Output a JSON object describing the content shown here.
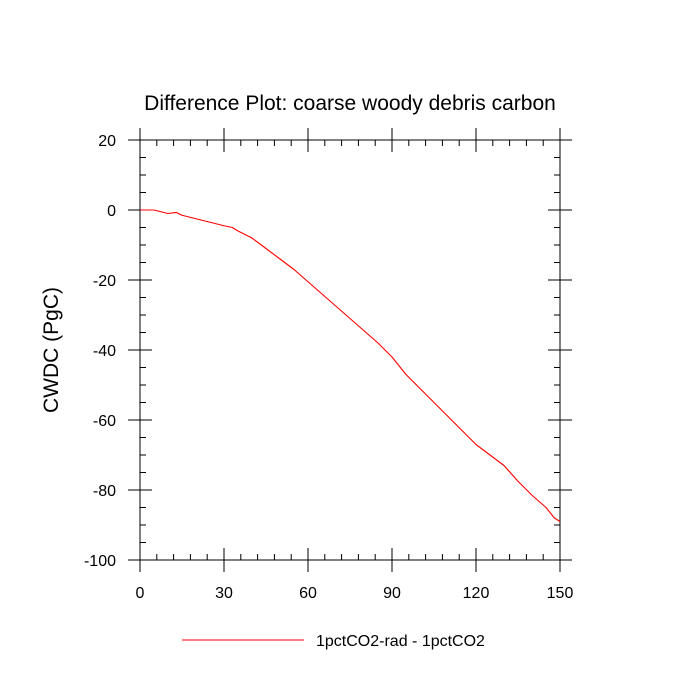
{
  "chart_data": {
    "type": "line",
    "title": "Difference Plot: coarse woody debris carbon",
    "xlabel": "",
    "ylabel": "CWDC  (PgC)",
    "xlim": [
      0,
      150
    ],
    "ylim": [
      -100,
      20
    ],
    "x_ticks": [
      0,
      30,
      60,
      90,
      120,
      150
    ],
    "y_ticks": [
      20,
      0,
      -20,
      -40,
      -60,
      -80,
      -100
    ],
    "x_tick_labels": [
      "0",
      "30",
      "60",
      "90",
      "120",
      "150"
    ],
    "y_tick_labels": [
      "20",
      "0",
      "-20",
      "-40",
      "-60",
      "-80",
      "-100"
    ],
    "grid": false,
    "legend_position": "bottom",
    "series": [
      {
        "name": "1pctCO2-rad - 1pctCO2",
        "color": "#ff0000",
        "x": [
          0,
          5,
          10,
          13,
          15,
          20,
          25,
          30,
          33,
          35,
          40,
          45,
          50,
          55,
          60,
          65,
          70,
          75,
          80,
          85,
          90,
          95,
          100,
          105,
          110,
          115,
          120,
          125,
          130,
          135,
          140,
          145,
          148,
          150
        ],
        "y": [
          0,
          0,
          -1,
          -0.7,
          -1.5,
          -2.5,
          -3.5,
          -4.5,
          -5,
          -6,
          -8,
          -11,
          -14,
          -17,
          -20.5,
          -24,
          -27.5,
          -31,
          -34.5,
          -38,
          -42,
          -47,
          -51,
          -55,
          -59,
          -63,
          -67,
          -70,
          -73,
          -77.5,
          -81.5,
          -85,
          -88,
          -89
        ]
      }
    ]
  }
}
